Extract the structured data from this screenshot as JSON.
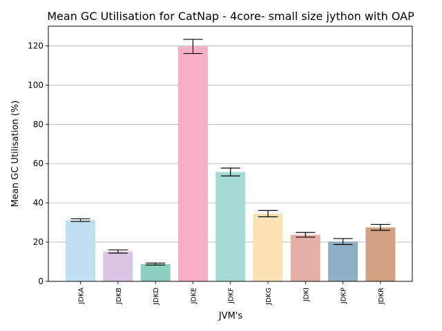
{
  "chart_data": {
    "type": "bar",
    "title": "Mean GC Utilisation for CatNap - 4core- small size jython with OAP",
    "xlabel": "JVM's",
    "ylabel": "Mean GC Utilisation (%)",
    "ylim": [
      0,
      130
    ],
    "yticks": [
      0,
      20,
      40,
      60,
      80,
      100,
      120
    ],
    "grid": "horizontal",
    "categories": [
      "JDKA",
      "JDKB",
      "JDKD",
      "JDKE",
      "JDKF",
      "JDKG",
      "JDKI",
      "JDKP",
      "JDKR"
    ],
    "values": [
      31.2,
      15.2,
      8.8,
      119.7,
      55.7,
      34.5,
      23.7,
      20.3,
      27.5
    ],
    "errors": [
      0.7,
      0.8,
      0.5,
      3.6,
      2.0,
      1.6,
      1.2,
      1.5,
      1.5
    ],
    "colors": [
      "#c1dff2",
      "#dbc5e4",
      "#8dcfc1",
      "#f7afc8",
      "#a6dbd5",
      "#fce3b6",
      "#e4afa6",
      "#8fafc4",
      "#d2a182"
    ]
  }
}
